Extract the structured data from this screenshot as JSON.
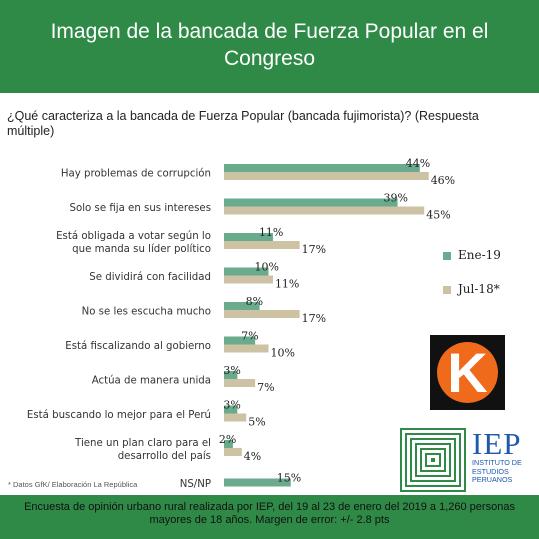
{
  "header": {
    "title": "Imagen de la bancada de Fuerza Popular en el Congreso"
  },
  "question": "¿Qué caracteriza a la bancada de Fuerza Popular (bancada fujimorista)? (Respuesta múltiple)",
  "chart_data": {
    "type": "bar",
    "orientation": "horizontal",
    "categories": [
      "Hay problemas de corrupción",
      "Solo se fija en sus intereses",
      "Está obligada a votar según lo que manda su líder político",
      "Se dividirá con facilidad",
      "No se les escucha mucho",
      "Está fiscalizando al gobierno",
      "Actúa de manera unida",
      "Está buscando lo mejor para el Perú",
      "Tiene un plan claro para el desarrollo del país",
      "NS/NP"
    ],
    "series": [
      {
        "name": "Ene-19",
        "color": "#6aab8e",
        "values": [
          44,
          39,
          11,
          10,
          8,
          7,
          3,
          3,
          2,
          15
        ],
        "labels": [
          "44%",
          "39%",
          "11%",
          "10%",
          "8%",
          "7%",
          "3%",
          "3%",
          "2%",
          "15%"
        ]
      },
      {
        "name": "Jul-18*",
        "color": "#cdc2a4",
        "values": [
          46,
          45,
          17,
          11,
          17,
          10,
          7,
          5,
          4,
          null
        ],
        "labels": [
          "46%",
          "45%",
          "17%",
          "11%",
          "17%",
          "10%",
          "7%",
          "5%",
          "4%",
          ""
        ]
      }
    ],
    "legend_position": "right",
    "grid": false,
    "axis_visible": false,
    "xlim": [
      0,
      50
    ]
  },
  "logos": {
    "k": "K",
    "iep_big": "IEP",
    "iep_small": "INSTITUTO DE ESTUDIOS PERUANOS"
  },
  "source_note": "* Datos GfK/ Elaboración La República",
  "footer": {
    "text": "Encuesta de opinión urbano rural realizada por IEP, del 19 al 23 de enero del 2019 a 1,260 personas mayores de 18 años. Margen de error: +/- 2.8 pts"
  },
  "colors": {
    "brand_green": "#2e8a46",
    "series_1": "#6aab8e",
    "series_2": "#cdc2a4",
    "k_orange": "#f06a1c",
    "iep_blue": "#1d5aa8"
  }
}
